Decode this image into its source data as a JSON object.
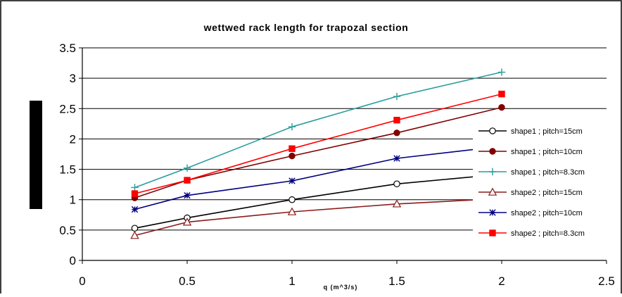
{
  "chart_data": {
    "type": "line",
    "title": "wettwed rack length for trapozal section",
    "xlabel": "q (m^3/s)",
    "ylabel": "",
    "xlim": [
      0,
      2.5
    ],
    "ylim": [
      0,
      3.5
    ],
    "x_ticks": [
      "0",
      "0.5",
      "1",
      "1.5",
      "2",
      "2.5"
    ],
    "y_ticks": [
      "0",
      "0.5",
      "1",
      "1.5",
      "2",
      "2.5",
      "3",
      "3.5"
    ],
    "grid": "horizontal",
    "legend_position": "right",
    "series": [
      {
        "name": "shape1 ; pitch=15cm",
        "color": "#000000",
        "marker": "circle-open",
        "x": [
          0.25,
          0.5,
          1,
          1.5,
          2
        ],
        "y": [
          0.53,
          0.7,
          1.0,
          1.26,
          1.42
        ]
      },
      {
        "name": "shape1 ; pitch=10cm",
        "color": "#800000",
        "marker": "circle-filled",
        "x": [
          0.25,
          0.5,
          1,
          1.5,
          2
        ],
        "y": [
          1.03,
          1.32,
          1.72,
          2.1,
          2.52
        ]
      },
      {
        "name": "shape1 ; pitch=8.3cm",
        "color": "#2a9d9d",
        "marker": "plus",
        "x": [
          0.25,
          0.5,
          1,
          1.5,
          2
        ],
        "y": [
          1.2,
          1.52,
          2.2,
          2.7,
          3.1
        ]
      },
      {
        "name": "shape2 ; pitch=15cm",
        "color": "#8b1a1a",
        "marker": "triangle-open",
        "x": [
          0.25,
          0.5,
          1,
          1.5,
          2
        ],
        "y": [
          0.41,
          0.63,
          0.8,
          0.93,
          1.02
        ]
      },
      {
        "name": "shape2 ; pitch=10cm",
        "color": "#000080",
        "marker": "asterisk",
        "x": [
          0.25,
          0.5,
          1,
          1.5,
          2
        ],
        "y": [
          0.84,
          1.07,
          1.31,
          1.68,
          1.88
        ]
      },
      {
        "name": "shape2 ; pitch=8.3cm",
        "color": "#ff0000",
        "marker": "square-filled",
        "x": [
          0.25,
          0.5,
          1,
          1.5,
          2
        ],
        "y": [
          1.1,
          1.32,
          1.84,
          2.31,
          2.74
        ]
      }
    ]
  }
}
